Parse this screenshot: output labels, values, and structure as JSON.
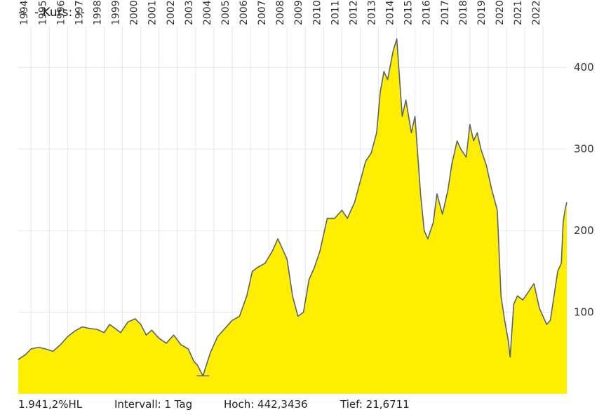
{
  "header": {
    "title": "--  - Kurs: --"
  },
  "footer": {
    "performance": "1.941,2%HL",
    "interval": "Intervall: 1 Tag",
    "high": "Hoch: 442,3436",
    "low": "Tief: 21,6711"
  },
  "colors": {
    "fill": "#ffee00",
    "line": "#5a6470",
    "grid": "#e6e6e6"
  },
  "chart_data": {
    "type": "area",
    "title": "",
    "xlabel": "",
    "ylabel": "",
    "x_tick_labels": [
      "1994",
      "1995",
      "1996",
      "1997",
      "1998",
      "1999",
      "2000",
      "2001",
      "2002",
      "2003",
      "2004",
      "2005",
      "2006",
      "2007",
      "2008",
      "2009",
      "2010",
      "2011",
      "2012",
      "2013",
      "2014",
      "2015",
      "2016",
      "2017",
      "2018",
      "2019",
      "2020",
      "2021",
      "2022"
    ],
    "y_tick_labels": [
      "100",
      "200",
      "300",
      "400"
    ],
    "y_ticks": [
      100,
      200,
      300,
      400
    ],
    "ylim": [
      0,
      450
    ],
    "xlim": [
      1993.3,
      2023.3
    ],
    "grid": true,
    "y_axis_side": "right",
    "series": [
      {
        "x": [
          1993.3,
          1993.7,
          1994.0,
          1994.4,
          1994.8,
          1995.2,
          1995.6,
          1996.0,
          1996.4,
          1996.8,
          1997.2,
          1997.6,
          1998.0,
          1998.3,
          1998.6,
          1998.9,
          1999.3,
          1999.7,
          2000.0,
          2000.3,
          2000.6,
          2001.0,
          2001.4,
          2001.8,
          2002.2,
          2002.6,
          2002.9,
          2003.1,
          2003.4,
          2003.8,
          2004.2,
          2004.6,
          2005.0,
          2005.4,
          2005.8,
          2006.1,
          2006.4,
          2006.8,
          2007.2,
          2007.5,
          2007.8,
          2008.0,
          2008.3,
          2008.6,
          2008.9,
          2009.2,
          2009.5,
          2009.8,
          2010.2,
          2010.6,
          2011.0,
          2011.3,
          2011.7,
          2012.0,
          2012.3,
          2012.6,
          2012.9,
          2013.1,
          2013.3,
          2013.5,
          2013.8,
          2014.0,
          2014.3,
          2014.5,
          2014.8,
          2015.0,
          2015.3,
          2015.5,
          2015.7,
          2016.0,
          2016.2,
          2016.5,
          2016.8,
          2017.0,
          2017.3,
          2017.5,
          2017.8,
          2018.0,
          2018.2,
          2018.4,
          2018.6,
          2018.9,
          2019.2,
          2019.5,
          2019.7,
          2019.9,
          2020.1,
          2020.2,
          2020.4,
          2020.6,
          2020.9,
          2021.2,
          2021.5,
          2021.8,
          2022.0,
          2022.2,
          2022.4,
          2022.6,
          2022.8,
          2023.0,
          2023.1,
          2023.2,
          2023.3
        ],
        "y": [
          42,
          48,
          55,
          57,
          55,
          52,
          60,
          70,
          77,
          82,
          80,
          79,
          75,
          85,
          80,
          75,
          88,
          92,
          85,
          72,
          78,
          68,
          62,
          72,
          60,
          55,
          40,
          35,
          22,
          50,
          70,
          80,
          90,
          95,
          120,
          150,
          155,
          160,
          175,
          190,
          175,
          165,
          120,
          95,
          100,
          140,
          155,
          175,
          215,
          215,
          225,
          215,
          235,
          260,
          285,
          295,
          320,
          370,
          395,
          385,
          420,
          435,
          340,
          360,
          320,
          340,
          245,
          200,
          190,
          210,
          245,
          220,
          250,
          280,
          310,
          300,
          290,
          330,
          310,
          320,
          300,
          280,
          250,
          225,
          120,
          90,
          65,
          45,
          110,
          120,
          115,
          125,
          135,
          105,
          95,
          85,
          90,
          120,
          150,
          160,
          210,
          225,
          235
        ]
      }
    ]
  }
}
